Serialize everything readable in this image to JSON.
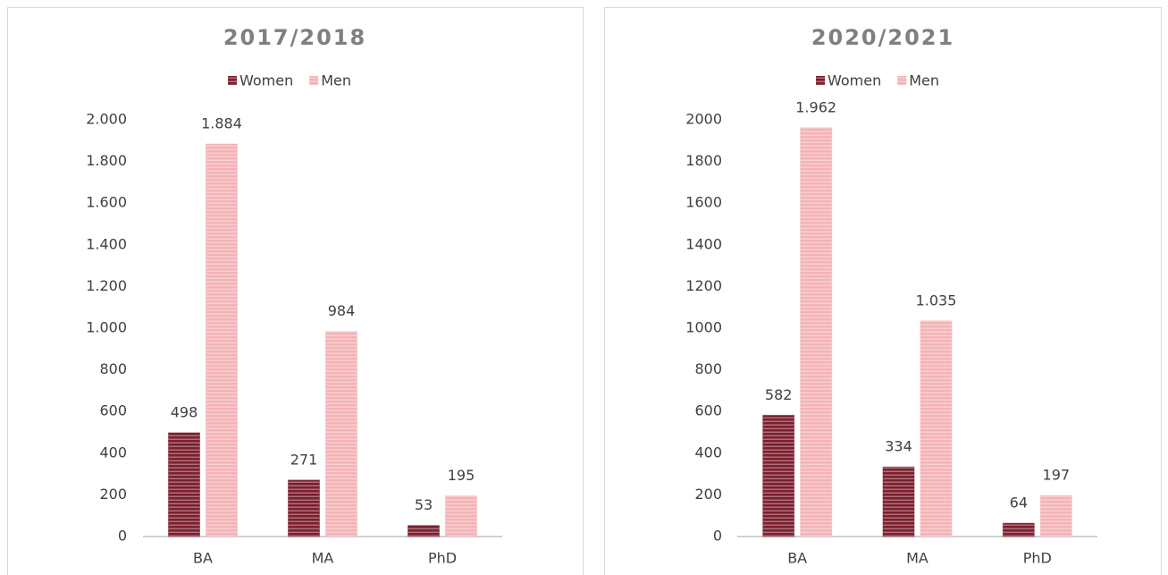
{
  "chart_data": [
    {
      "type": "bar",
      "title": "2017/2018",
      "categories": [
        "BA",
        "MA",
        "PhD"
      ],
      "series": [
        {
          "name": "Women",
          "color": "#7b1f2e",
          "values": [
            498,
            271,
            53
          ]
        },
        {
          "name": "Men",
          "color": "#f4b3b6",
          "values": [
            1884,
            984,
            195
          ],
          "value_labels": [
            "1.884",
            "984",
            "195"
          ]
        }
      ],
      "ylim": [
        0,
        2000
      ],
      "yticks": [
        0,
        200,
        400,
        600,
        800,
        {
          "value": 1000,
          "label": "1.000"
        },
        {
          "value": 1200,
          "label": "1.200"
        },
        {
          "value": 1400,
          "label": "1.400"
        },
        {
          "value": 1600,
          "label": "1.600"
        },
        {
          "value": 1800,
          "label": "1.800"
        },
        {
          "value": 2000,
          "label": "2.000"
        }
      ],
      "grid": false,
      "legend": "top"
    },
    {
      "type": "bar",
      "title": "2020/2021",
      "categories": [
        "BA",
        "MA",
        "PhD"
      ],
      "series": [
        {
          "name": "Women",
          "color": "#7b1f2e",
          "values": [
            582,
            334,
            64
          ]
        },
        {
          "name": "Men",
          "color": "#f4b3b6",
          "values": [
            1962,
            1035,
            197
          ],
          "value_labels": [
            "1.962",
            "1.035",
            "197"
          ]
        }
      ],
      "ylim": [
        0,
        2000
      ],
      "yticks": [
        0,
        200,
        400,
        600,
        800,
        1000,
        1200,
        1400,
        1600,
        1800,
        2000
      ],
      "grid": false,
      "legend": "top"
    }
  ]
}
